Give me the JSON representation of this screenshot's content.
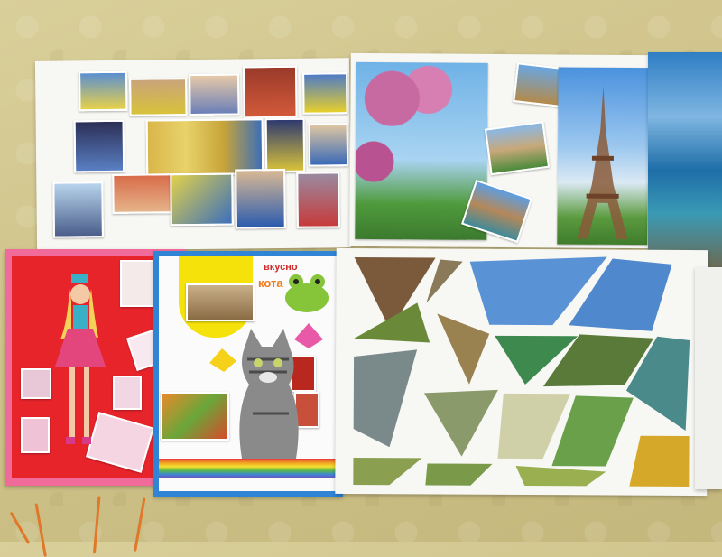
{
  "scene": {
    "colors": {
      "floor": "#d2c68c",
      "paper": "#f7f7f4",
      "doll_background": "#e8242b",
      "kitten_border": "#2f84d6",
      "cable": "#e0772a"
    },
    "kitten_poster": {
      "text_top": "вкусно",
      "text_brand": "кота"
    }
  }
}
